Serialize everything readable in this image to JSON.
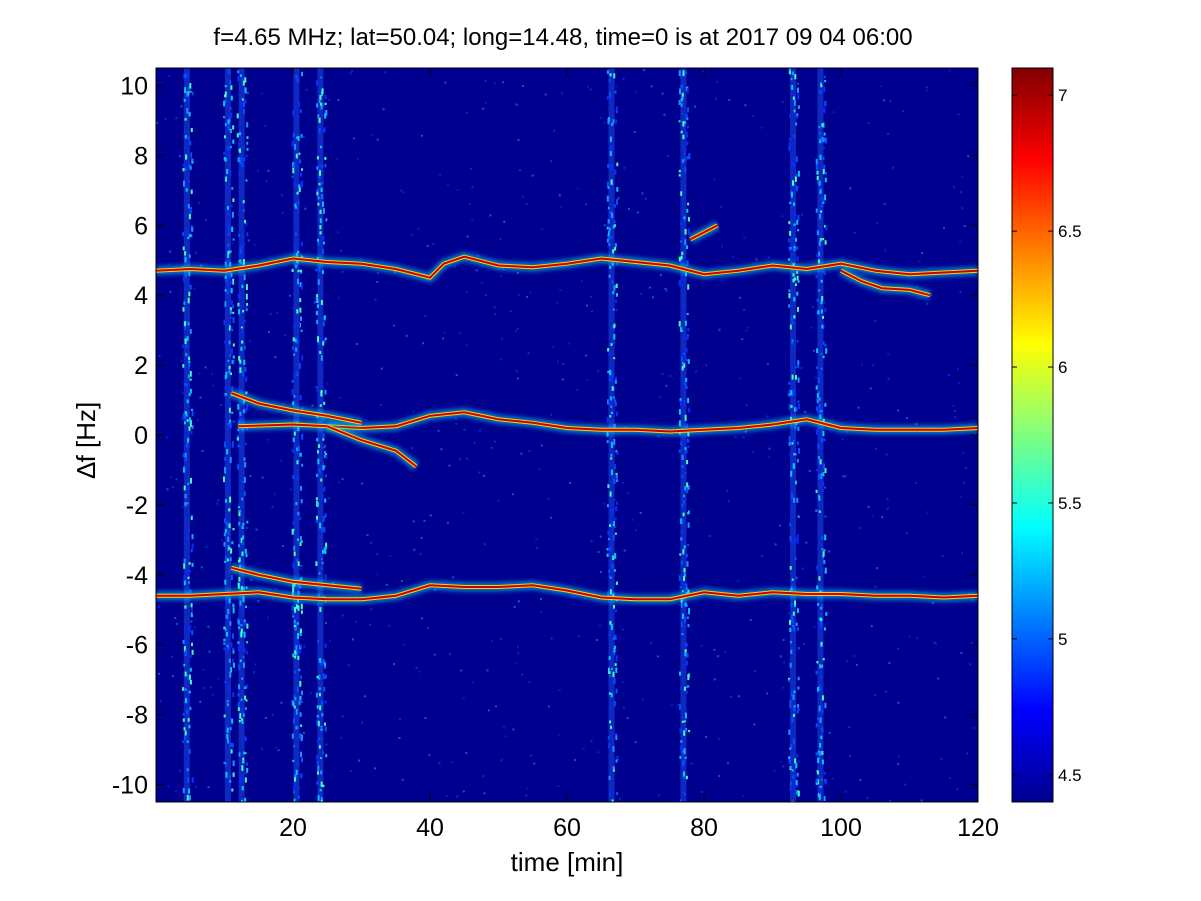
{
  "chart_data": {
    "type": "heatmap",
    "title": "f=4.65 MHz;  lat=50.04; long=14.48, time=0 is at 2017 09 04 06:00",
    "xlabel": "time [min]",
    "ylabel": "∆f [Hz]",
    "xlim": [
      0,
      120
    ],
    "ylim": [
      -10.5,
      10.5
    ],
    "x_ticks": [
      20,
      40,
      60,
      80,
      100,
      120
    ],
    "y_ticks": [
      -10,
      -8,
      -6,
      -4,
      -2,
      0,
      2,
      4,
      6,
      8,
      10
    ],
    "colorbar": {
      "colormap": "jet",
      "range": [
        4.4,
        7.1
      ],
      "ticks": [
        4.5,
        5,
        5.5,
        6,
        6.5,
        7
      ]
    },
    "background_color": "#00008f",
    "broadband_vertical_stripes_min": [
      4.5,
      10.5,
      12.5,
      20.5,
      24,
      66.5,
      77,
      93,
      97
    ],
    "traces": [
      {
        "label": "upper doppler trace",
        "points": [
          [
            0,
            4.7
          ],
          [
            5,
            4.75
          ],
          [
            10,
            4.7
          ],
          [
            15,
            4.85
          ],
          [
            20,
            5.05
          ],
          [
            25,
            4.95
          ],
          [
            30,
            4.9
          ],
          [
            35,
            4.75
          ],
          [
            40,
            4.5
          ],
          [
            42,
            4.9
          ],
          [
            45,
            5.1
          ],
          [
            50,
            4.85
          ],
          [
            55,
            4.8
          ],
          [
            60,
            4.9
          ],
          [
            65,
            5.05
          ],
          [
            70,
            4.95
          ],
          [
            75,
            4.85
          ],
          [
            80,
            4.6
          ],
          [
            85,
            4.7
          ],
          [
            90,
            4.85
          ],
          [
            95,
            4.75
          ],
          [
            100,
            4.9
          ],
          [
            105,
            4.7
          ],
          [
            110,
            4.6
          ],
          [
            115,
            4.65
          ],
          [
            120,
            4.7
          ]
        ]
      },
      {
        "label": "upper doppler side branch",
        "points": [
          [
            78,
            5.6
          ],
          [
            80,
            5.8
          ],
          [
            82,
            6.0
          ]
        ]
      },
      {
        "label": "upper doppler lower branch",
        "points": [
          [
            100,
            4.7
          ],
          [
            103,
            4.4
          ],
          [
            106,
            4.2
          ],
          [
            110,
            4.15
          ],
          [
            113,
            4.0
          ]
        ]
      },
      {
        "label": "central doppler trace",
        "points": [
          [
            12,
            0.25
          ],
          [
            20,
            0.3
          ],
          [
            25,
            0.25
          ],
          [
            30,
            0.2
          ],
          [
            35,
            0.25
          ],
          [
            40,
            0.55
          ],
          [
            45,
            0.65
          ],
          [
            50,
            0.45
          ],
          [
            55,
            0.35
          ],
          [
            60,
            0.2
          ],
          [
            65,
            0.15
          ],
          [
            70,
            0.15
          ],
          [
            75,
            0.1
          ],
          [
            80,
            0.15
          ],
          [
            85,
            0.2
          ],
          [
            90,
            0.3
          ],
          [
            95,
            0.45
          ],
          [
            100,
            0.2
          ],
          [
            105,
            0.15
          ],
          [
            110,
            0.15
          ],
          [
            115,
            0.15
          ],
          [
            120,
            0.2
          ]
        ]
      },
      {
        "label": "central doppler upper branch",
        "points": [
          [
            11,
            1.2
          ],
          [
            15,
            0.9
          ],
          [
            20,
            0.7
          ],
          [
            25,
            0.55
          ],
          [
            30,
            0.35
          ]
        ]
      },
      {
        "label": "central doppler descending branch",
        "points": [
          [
            25,
            0.25
          ],
          [
            30,
            -0.15
          ],
          [
            35,
            -0.45
          ],
          [
            38,
            -0.9
          ]
        ]
      },
      {
        "label": "lower doppler trace",
        "points": [
          [
            0,
            -4.6
          ],
          [
            5,
            -4.6
          ],
          [
            10,
            -4.55
          ],
          [
            15,
            -4.5
          ],
          [
            20,
            -4.65
          ],
          [
            25,
            -4.7
          ],
          [
            30,
            -4.7
          ],
          [
            35,
            -4.6
          ],
          [
            40,
            -4.3
          ],
          [
            45,
            -4.35
          ],
          [
            50,
            -4.35
          ],
          [
            55,
            -4.3
          ],
          [
            60,
            -4.45
          ],
          [
            65,
            -4.65
          ],
          [
            70,
            -4.7
          ],
          [
            75,
            -4.7
          ],
          [
            80,
            -4.5
          ],
          [
            85,
            -4.6
          ],
          [
            90,
            -4.5
          ],
          [
            95,
            -4.55
          ],
          [
            100,
            -4.55
          ],
          [
            105,
            -4.6
          ],
          [
            110,
            -4.6
          ],
          [
            115,
            -4.65
          ],
          [
            120,
            -4.6
          ]
        ]
      },
      {
        "label": "lower doppler upper branch",
        "points": [
          [
            11,
            -3.8
          ],
          [
            15,
            -4.0
          ],
          [
            20,
            -4.2
          ],
          [
            25,
            -4.3
          ],
          [
            30,
            -4.4
          ]
        ]
      }
    ]
  }
}
